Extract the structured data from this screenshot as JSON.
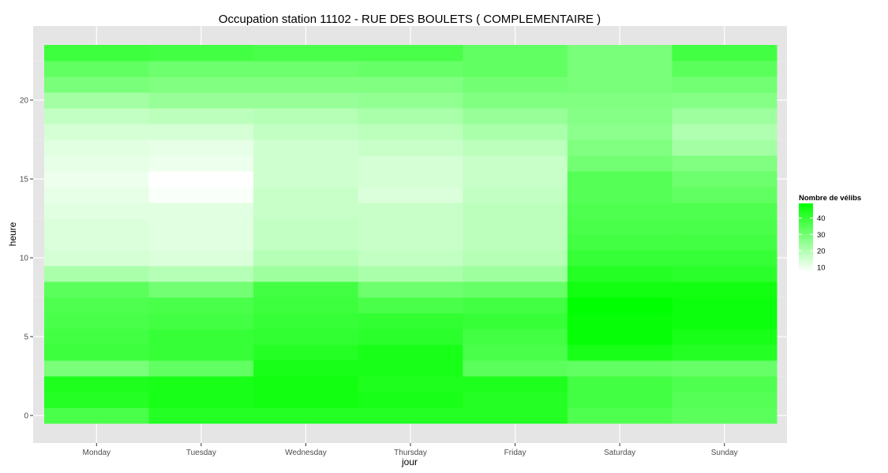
{
  "chart_data": {
    "type": "heatmap",
    "title": "Occupation station 11102 - RUE DES BOULETS ( COMPLEMENTAIRE )",
    "xlabel": "jour",
    "ylabel": "heure",
    "x_categories": [
      "Monday",
      "Tuesday",
      "Wednesday",
      "Thursday",
      "Friday",
      "Saturday",
      "Sunday"
    ],
    "y_values": [
      0,
      1,
      2,
      3,
      4,
      5,
      6,
      7,
      8,
      9,
      10,
      11,
      12,
      13,
      14,
      15,
      16,
      17,
      18,
      19,
      20,
      21,
      22,
      23
    ],
    "y_ticks": [
      0,
      5,
      10,
      15,
      20
    ],
    "ylim": [
      -0.5,
      23.5
    ],
    "grid": true,
    "legend": {
      "title": "Nombre de vélibs",
      "ticks": [
        10,
        20,
        30,
        40
      ],
      "range": [
        7,
        49
      ],
      "low_color": "#ffffff",
      "high_color": "#00ff00",
      "position": "right"
    },
    "series": [
      {
        "name": "Monday",
        "values": [
          37,
          43,
          44,
          29,
          39,
          38,
          37,
          36,
          34,
          21,
          14,
          13,
          13,
          12,
          11,
          10,
          11,
          12,
          14,
          17,
          22,
          29,
          33,
          39
        ]
      },
      {
        "name": "Tuesday",
        "values": [
          43,
          45,
          45,
          33,
          40,
          40,
          38,
          37,
          30,
          19,
          13,
          12,
          12,
          12,
          8,
          7,
          10,
          11,
          14,
          18,
          24,
          28,
          31,
          38
        ]
      },
      {
        "name": "Wednesday",
        "values": [
          43,
          46,
          46,
          45,
          43,
          41,
          40,
          39,
          38,
          23,
          19,
          17,
          17,
          16,
          16,
          15,
          15,
          15,
          17,
          19,
          24,
          28,
          31,
          37
        ]
      },
      {
        "name": "Thursday",
        "values": [
          43,
          45,
          44,
          45,
          45,
          42,
          41,
          37,
          31,
          21,
          17,
          16,
          16,
          16,
          13,
          14,
          14,
          16,
          18,
          21,
          25,
          28,
          32,
          37
        ]
      },
      {
        "name": "Friday",
        "values": [
          43,
          43,
          44,
          34,
          37,
          38,
          40,
          38,
          32,
          23,
          19,
          18,
          18,
          18,
          17,
          16,
          16,
          18,
          21,
          24,
          28,
          30,
          33,
          33
        ]
      },
      {
        "name": "Saturday",
        "values": [
          36,
          38,
          38,
          33,
          45,
          48,
          48,
          49,
          46,
          43,
          40,
          38,
          37,
          36,
          35,
          35,
          30,
          28,
          26,
          27,
          28,
          29,
          29,
          29
        ]
      },
      {
        "name": "Sunday",
        "values": [
          34,
          35,
          36,
          32,
          43,
          45,
          47,
          47,
          46,
          42,
          40,
          38,
          37,
          36,
          33,
          31,
          28,
          22,
          20,
          23,
          27,
          30,
          34,
          38
        ]
      }
    ]
  }
}
